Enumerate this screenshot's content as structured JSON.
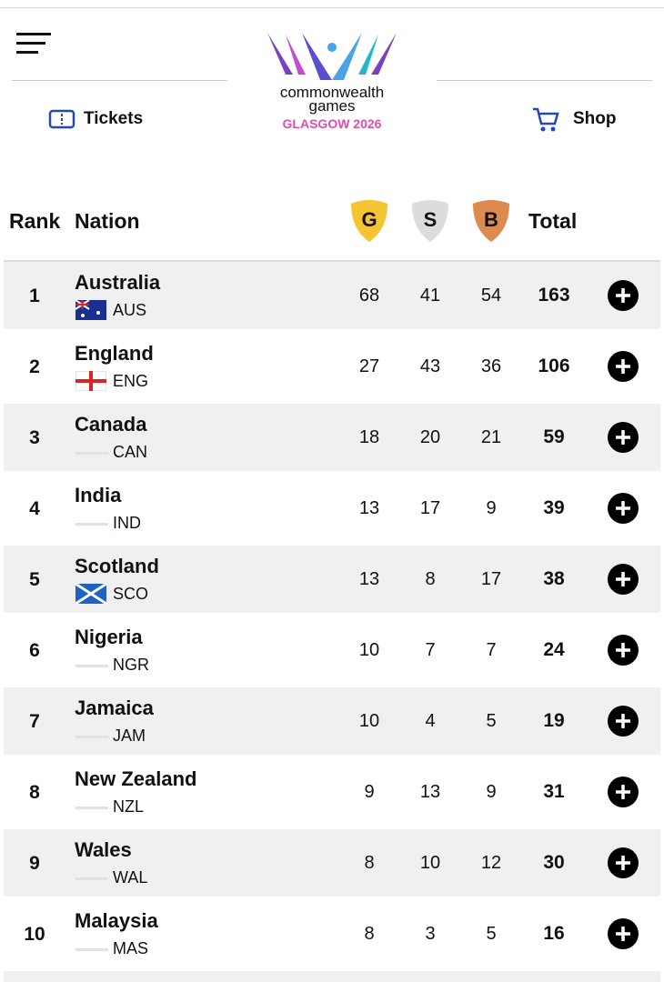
{
  "header": {
    "logo_line1": "commonwealth",
    "logo_line2": "games",
    "logo_line3": "GLASGOW 2026",
    "nav": [
      "Tickets",
      "Shop"
    ]
  },
  "table": {
    "columns": [
      "Rank",
      "Nation",
      "G",
      "S",
      "B",
      "Total"
    ],
    "rows": [
      {
        "rank": 1,
        "nation": "Australia",
        "code": "AUS",
        "gold": 68,
        "silver": 41,
        "bronze": 54,
        "total": 163
      },
      {
        "rank": 2,
        "nation": "England",
        "code": "ENG",
        "gold": 27,
        "silver": 43,
        "bronze": 36,
        "total": 106
      },
      {
        "rank": 3,
        "nation": "Canada",
        "code": "CAN",
        "gold": 18,
        "silver": 20,
        "bronze": 21,
        "total": 59
      },
      {
        "rank": 4,
        "nation": "India",
        "code": "IND",
        "gold": 13,
        "silver": 17,
        "bronze": 9,
        "total": 39
      },
      {
        "rank": 5,
        "nation": "Scotland",
        "code": "SCO",
        "gold": 13,
        "silver": 8,
        "bronze": 17,
        "total": 38
      },
      {
        "rank": 6,
        "nation": "Nigeria",
        "code": "NGR",
        "gold": 10,
        "silver": 7,
        "bronze": 7,
        "total": 24
      },
      {
        "rank": 7,
        "nation": "Jamaica",
        "code": "JAM",
        "gold": 10,
        "silver": 4,
        "bronze": 5,
        "total": 19
      },
      {
        "rank": 8,
        "nation": "New Zealand",
        "code": "NZL",
        "gold": 9,
        "silver": 13,
        "bronze": 9,
        "total": 31
      },
      {
        "rank": 9,
        "nation": "Wales",
        "code": "WAL",
        "gold": 8,
        "silver": 10,
        "bronze": 12,
        "total": 30
      },
      {
        "rank": 10,
        "nation": "Malaysia",
        "code": "MAS",
        "gold": 8,
        "silver": 3,
        "bronze": 5,
        "total": 16
      }
    ]
  }
}
